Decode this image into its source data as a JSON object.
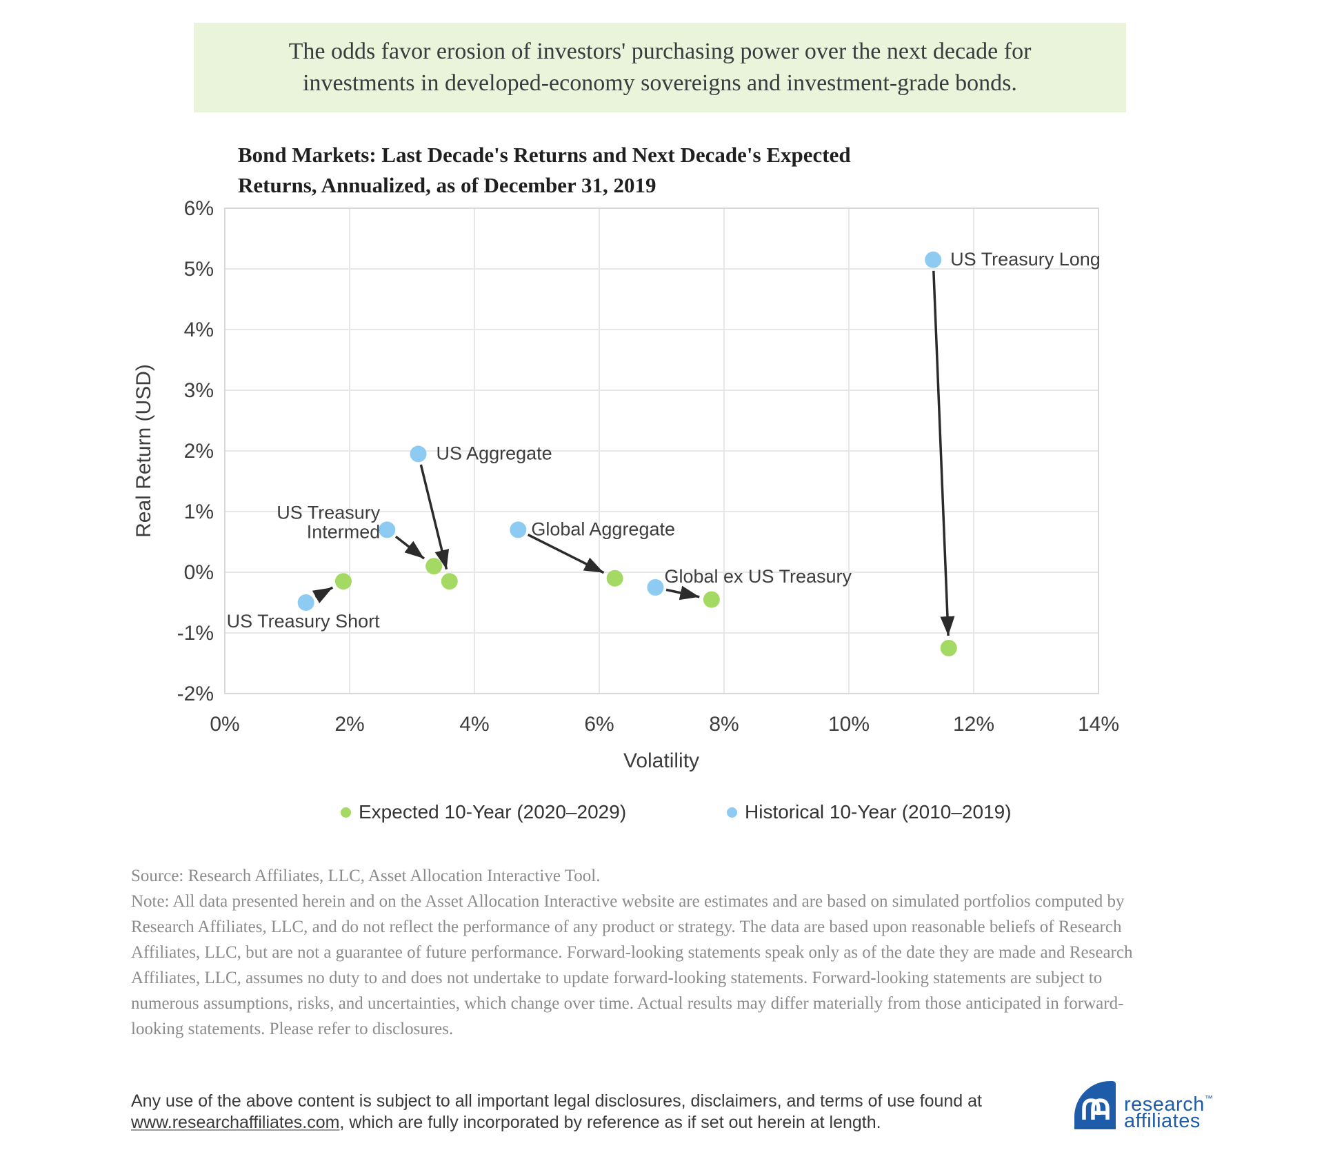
{
  "banner": {
    "lines": [
      "The odds favor erosion of investors' purchasing power over the next decade for",
      "investments in developed-economy sovereigns and investment-grade bonds."
    ]
  },
  "chart": {
    "title_lines": [
      "Bond Markets: Last Decade's Returns and Next Decade's Expected",
      "Returns, Annualized, as of December 31, 2019"
    ]
  },
  "chart_data": {
    "type": "scatter",
    "title": "Bond Markets: Last Decade's Returns and Next Decade's Expected Returns, Annualized, as of December 31, 2019",
    "xlabel": "Volatility",
    "ylabel": "Real Return (USD)",
    "xlim": [
      0,
      14
    ],
    "ylim": [
      -2,
      6
    ],
    "x_ticks": [
      0,
      2,
      4,
      6,
      8,
      10,
      12,
      14
    ],
    "y_ticks": [
      6,
      5,
      4,
      3,
      2,
      1,
      0,
      -1,
      -2
    ],
    "grid": true,
    "legend_position": "bottom",
    "arrow_color": "#2b2b2b",
    "series": [
      {
        "name": "Expected 10-Year (2020–2029)",
        "role": "expected",
        "color": "#a4d964"
      },
      {
        "name": "Historical 10-Year (2010–2019)",
        "role": "historical",
        "color": "#8ecbf2"
      }
    ],
    "points": [
      {
        "label": "US Treasury Short",
        "historical": {
          "vol": 1.3,
          "ret": -0.5
        },
        "expected": {
          "vol": 1.9,
          "ret": -0.15
        },
        "label_anchor": "historical",
        "label_align": "middle",
        "label_dx": -4,
        "label_lines": [
          "US Treasury Short"
        ],
        "label_dys": [
          36
        ]
      },
      {
        "label": "US Treasury Intermed",
        "historical": {
          "vol": 2.6,
          "ret": 0.7
        },
        "expected": {
          "vol": 3.35,
          "ret": 0.1
        },
        "label_anchor": "historical",
        "label_align": "end",
        "label_dx": -10,
        "label_lines": [
          "US Treasury",
          "Intermed"
        ],
        "label_dys": [
          -16,
          12
        ]
      },
      {
        "label": "US Aggregate",
        "historical": {
          "vol": 3.1,
          "ret": 1.95
        },
        "expected": {
          "vol": 3.6,
          "ret": -0.15
        },
        "label_anchor": "historical",
        "label_align": "start",
        "label_dx": 26,
        "label_lines": [
          "US Aggregate"
        ],
        "label_dys": [
          8
        ]
      },
      {
        "label": "Global Aggregate",
        "historical": {
          "vol": 4.7,
          "ret": 0.7
        },
        "expected": {
          "vol": 6.25,
          "ret": -0.1
        },
        "label_anchor": "historical",
        "label_align": "start",
        "label_dx": 19,
        "label_lines": [
          "Global Aggregate"
        ],
        "label_dys": [
          8
        ]
      },
      {
        "label": "Global ex US Treasury",
        "historical": {
          "vol": 6.9,
          "ret": -0.25
        },
        "expected": {
          "vol": 7.8,
          "ret": -0.45
        },
        "label_anchor": "historical",
        "label_align": "start",
        "label_dx": 13,
        "label_lines": [
          "Global ex US Treasury"
        ],
        "label_dys": [
          -7
        ]
      },
      {
        "label": "US Treasury Long",
        "historical": {
          "vol": 11.35,
          "ret": 5.15
        },
        "expected": {
          "vol": 11.6,
          "ret": -1.25
        },
        "label_anchor": "historical",
        "label_align": "start",
        "label_dx": 25,
        "label_lines": [
          "US Treasury Long"
        ],
        "label_dys": [
          8
        ]
      }
    ]
  },
  "legend": {
    "expected_label": "Expected 10-Year (2020–2029)",
    "historical_label": "Historical 10-Year (2010–2019)"
  },
  "notes": {
    "source": "Source: Research Affiliates, LLC, Asset Allocation Interactive Tool.",
    "note_lines": [
      "Note: All data presented herein and on the Asset Allocation Interactive website are estimates and are based on simulated portfolios computed by",
      "Research Affiliates, LLC, and do not reflect the performance of any product or strategy. The data are based upon reasonable beliefs of Research",
      "Affiliates, LLC, but are not a guarantee of future performance. Forward-looking statements speak only as of the date they are made and Research",
      "Affiliates, LLC, assumes no duty to and does not undertake to update forward-looking statements. Forward-looking statements are subject to",
      "numerous assumptions, risks, and uncertainties, which change over time. Actual results may differ materially from those anticipated in forward-",
      "looking statements. Please refer to disclosures."
    ]
  },
  "footer": {
    "line1": "Any use of the above content is subject to all important legal disclosures, disclaimers, and terms of use found at",
    "link_text": "www.researchaffiliates.com",
    "line2_rest": ", which are fully incorporated by reference as if set out herein at length.",
    "logo": {
      "word1": "research",
      "word2": "affiliates",
      "tm": "™"
    }
  },
  "colors": {
    "banner_bg": "#e9f4da",
    "expected_green": "#a4d964",
    "historical_blue": "#8ecbf2",
    "arrow": "#2b2b2b",
    "gridline": "#e7e7e7",
    "note_gray": "#8b8b8b",
    "logo_blue": "#1e5ba8"
  }
}
